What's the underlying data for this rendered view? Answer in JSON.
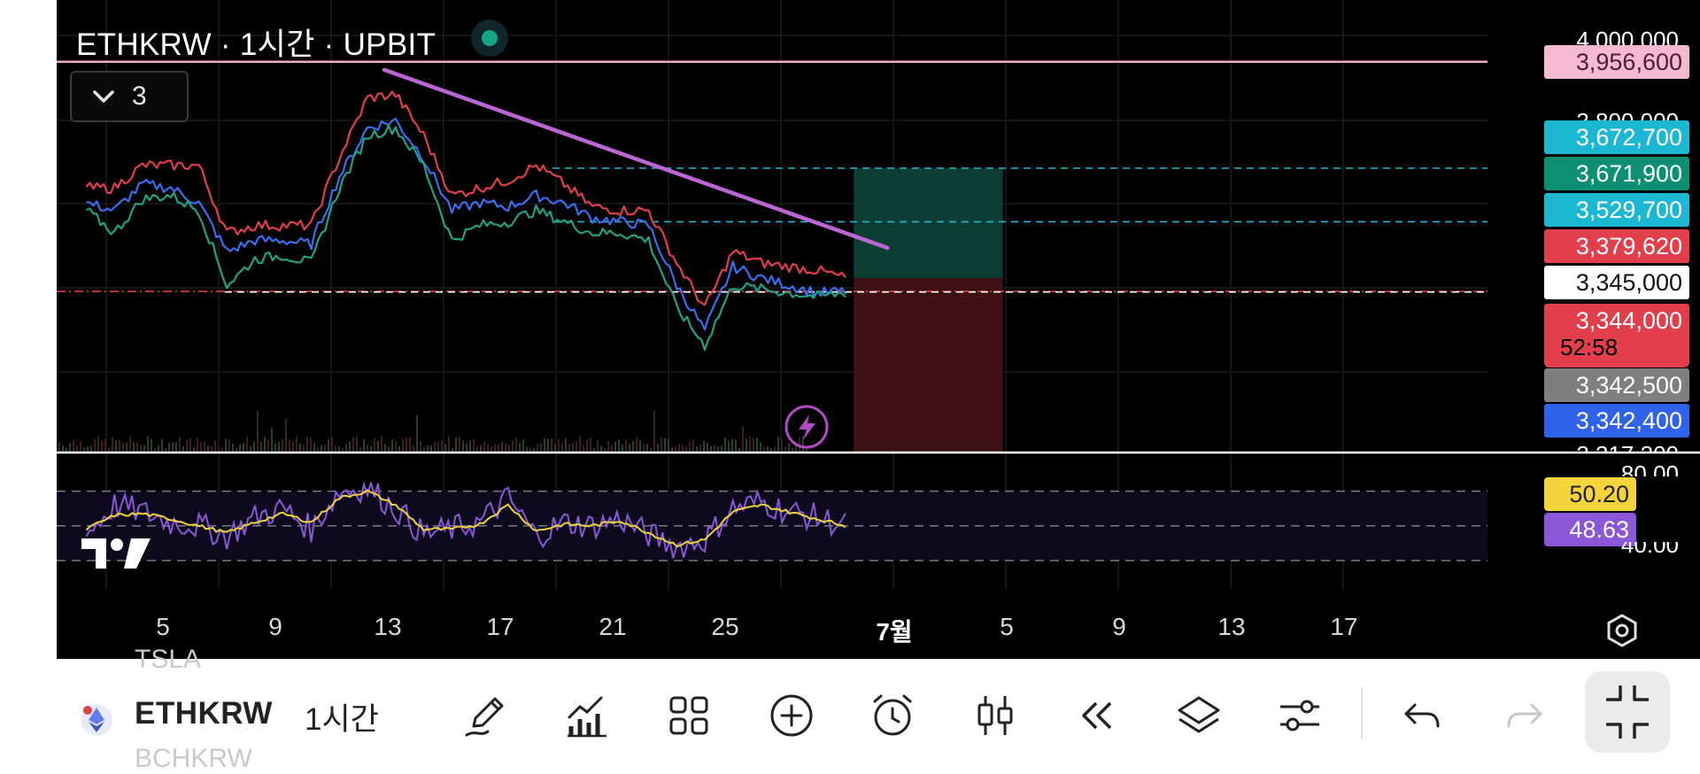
{
  "header": {
    "title": "ETHKRW · 1시간 · UPBIT",
    "indicator_count": "3"
  },
  "chart_data": {
    "type": "line",
    "title": "ETHKRW · 1시간 · UPBIT",
    "symbol": "ETHKRW",
    "interval": "1시간",
    "exchange": "UPBIT",
    "x_ticks": [
      "5",
      "9",
      "13",
      "17",
      "21",
      "25",
      "7월",
      "5",
      "9",
      "13",
      "17"
    ],
    "y_ticks": [
      "4,000,000",
      "3,800,000",
      "3,317,300"
    ],
    "ylim": [
      3317300,
      4000000
    ],
    "grid": true,
    "series": [
      {
        "color": "#3b6ef0",
        "x": [
          1,
          2,
          3,
          4,
          5,
          6,
          7,
          8,
          9,
          10,
          11,
          12,
          13,
          14,
          15,
          16,
          17,
          18,
          19,
          20,
          21,
          22,
          23,
          24,
          25,
          26,
          27,
          28
        ],
        "y": [
          3580000,
          3560000,
          3630000,
          3620000,
          3580000,
          3450000,
          3480000,
          3480000,
          3470000,
          3650000,
          3780000,
          3800000,
          3700000,
          3560000,
          3580000,
          3570000,
          3600000,
          3580000,
          3540000,
          3530000,
          3520000,
          3360000,
          3240000,
          3410000,
          3380000,
          3360000,
          3340000,
          3344000
        ]
      },
      {
        "color": "#e23e4b",
        "x": [
          1,
          2,
          3,
          4,
          5,
          6,
          7,
          8,
          9,
          10,
          11,
          12,
          13,
          14,
          15,
          16,
          17,
          18,
          19,
          20,
          21,
          22,
          23,
          24,
          25,
          26,
          27,
          28
        ],
        "y": [
          3620000,
          3620000,
          3680000,
          3680000,
          3680000,
          3500000,
          3520000,
          3520000,
          3520000,
          3700000,
          3860000,
          3870000,
          3760000,
          3600000,
          3620000,
          3640000,
          3680000,
          3630000,
          3570000,
          3560000,
          3560000,
          3420000,
          3300000,
          3450000,
          3420000,
          3410000,
          3400000,
          3380000
        ]
      },
      {
        "color": "#1fa386",
        "x": [
          1,
          2,
          3,
          4,
          5,
          6,
          7,
          8,
          9,
          10,
          11,
          12,
          13,
          14,
          15,
          16,
          17,
          18,
          19,
          20,
          21,
          22,
          23,
          24,
          25,
          26,
          27,
          28
        ],
        "y": [
          3560000,
          3500000,
          3590000,
          3600000,
          3560000,
          3360000,
          3430000,
          3440000,
          3420000,
          3620000,
          3760000,
          3780000,
          3680000,
          3480000,
          3520000,
          3530000,
          3560000,
          3530000,
          3500000,
          3500000,
          3480000,
          3300000,
          3200000,
          3360000,
          3350000,
          3340000,
          3330000,
          3340000
        ]
      }
    ],
    "trendline": {
      "color": "#bb66d4",
      "x": [
        11.6,
        29.5
      ],
      "y": [
        3935000,
        3460000
      ]
    },
    "horizontal_lines": [
      {
        "value": 3956600,
        "color": "#f2a7c3",
        "style": "solid"
      },
      {
        "value": 3672700,
        "color": "#1cb8d3",
        "style": "dashed"
      },
      {
        "value": 3529700,
        "color": "#1cb8d3",
        "style": "dashed"
      },
      {
        "value": 3344000,
        "color": "#e23e4b",
        "style": "dash-dot"
      },
      {
        "value": 3342500,
        "color": "#ffffff",
        "style": "dashed"
      }
    ],
    "position_tool": {
      "x_start": 28.3,
      "x_end": 33.6,
      "target": 3671900,
      "entry": 3379620,
      "stop": 3317300,
      "profit_color": "#0c3e34",
      "loss_color": "#3e1215"
    },
    "price_labels": [
      {
        "text": "3,956,600",
        "bg": "#f7b9cf",
        "fg": "#4a2230"
      },
      {
        "text": "3,672,700",
        "bg": "#1cb8d3",
        "fg": "#ffffff"
      },
      {
        "text": "3,671,900",
        "bg": "#0d8f73",
        "fg": "#ffffff"
      },
      {
        "text": "3,529,700",
        "bg": "#1cb8d3",
        "fg": "#ffffff"
      },
      {
        "text": "3,379,620",
        "bg": "#e23e4b",
        "fg": "#ffffff"
      },
      {
        "text": "3,345,000",
        "bg": "#ffffff",
        "fg": "#111111"
      },
      {
        "text": "3,344,000",
        "bg": "#e23e4b",
        "fg": "#ffffff"
      },
      {
        "text": "3,342,500",
        "bg": "#7f7f7f",
        "fg": "#ffffff"
      },
      {
        "text": "3,342,400",
        "bg": "#2f63ec",
        "fg": "#ffffff"
      }
    ],
    "countdown": "52:58",
    "rsi": {
      "levels": [
        70,
        50,
        30
      ],
      "ticks": [
        "80.00",
        "40.00"
      ],
      "rsi_label": "48.63",
      "rsi_color": "#8b57d8",
      "ma_label": "50.20",
      "ma_color": "#f0d43c",
      "x": [
        1,
        2,
        3,
        4,
        5,
        6,
        7,
        8,
        9,
        10,
        11,
        12,
        13,
        14,
        15,
        16,
        17,
        18,
        19,
        20,
        21,
        22,
        23,
        24,
        25,
        26,
        27,
        28
      ],
      "rsi_values": [
        45,
        62,
        58,
        52,
        50,
        44,
        55,
        60,
        48,
        70,
        72,
        60,
        45,
        48,
        52,
        66,
        44,
        52,
        50,
        54,
        45,
        38,
        42,
        60,
        64,
        58,
        55,
        50
      ],
      "ma_values": [
        48,
        56,
        57,
        54,
        50,
        46,
        52,
        57,
        52,
        66,
        70,
        62,
        48,
        48,
        51,
        62,
        47,
        51,
        50,
        53,
        46,
        39,
        42,
        58,
        62,
        58,
        54,
        50
      ]
    }
  },
  "toolbar": {
    "symbol_above": "TSLA",
    "symbol": "ETHKRW",
    "symbol_below": "BCHKRW",
    "interval": "1시간"
  }
}
